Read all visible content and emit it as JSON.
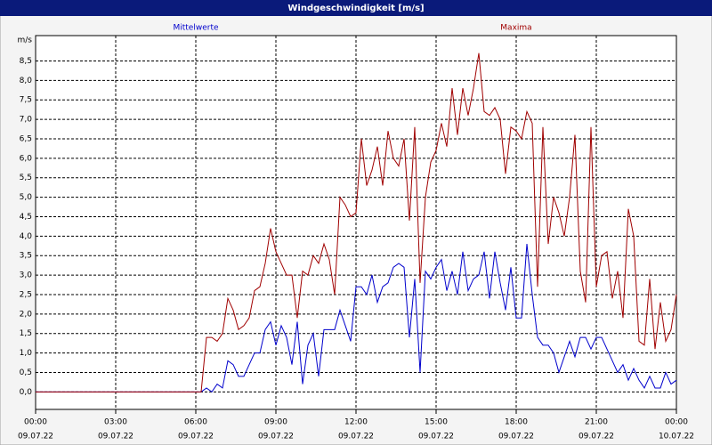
{
  "chart_data": {
    "type": "line",
    "title": "Windgeschwindigkeit [m/s]",
    "y_label": "m/s",
    "x": [
      0,
      6.2,
      6.4,
      6.6,
      6.8,
      7.0,
      7.2,
      7.4,
      7.6,
      7.8,
      8.0,
      8.2,
      8.4,
      8.6,
      8.8,
      9.0,
      9.2,
      9.4,
      9.6,
      9.8,
      10.0,
      10.2,
      10.4,
      10.6,
      10.8,
      11.0,
      11.2,
      11.4,
      11.6,
      11.8,
      12.0,
      12.2,
      12.4,
      12.6,
      12.8,
      13.0,
      13.2,
      13.4,
      13.6,
      13.8,
      14.0,
      14.2,
      14.4,
      14.6,
      14.8,
      15.0,
      15.2,
      15.4,
      15.6,
      15.8,
      16.0,
      16.2,
      16.4,
      16.6,
      16.8,
      17.0,
      17.2,
      17.4,
      17.6,
      17.8,
      18.0,
      18.2,
      18.4,
      18.6,
      18.8,
      19.0,
      19.2,
      19.4,
      19.6,
      19.8,
      20.0,
      20.2,
      20.4,
      20.6,
      20.8,
      21.0,
      21.2,
      21.4,
      21.6,
      21.8,
      22.0,
      22.2,
      22.4,
      22.6,
      22.8,
      23.0,
      23.2,
      23.4,
      23.6,
      23.8,
      24.0
    ],
    "series": [
      {
        "name": "Mittelwerte",
        "color": "#0000cc",
        "values": [
          0,
          0,
          0.1,
          0,
          0.2,
          0.1,
          0.8,
          0.7,
          0.4,
          0.4,
          0.7,
          1.0,
          1.0,
          1.6,
          1.8,
          1.2,
          1.7,
          1.4,
          0.7,
          1.8,
          0.2,
          1.2,
          1.5,
          0.4,
          1.6,
          1.6,
          1.6,
          2.1,
          1.7,
          1.3,
          2.7,
          2.7,
          2.5,
          3.0,
          2.3,
          2.7,
          2.8,
          3.2,
          3.3,
          3.2,
          1.4,
          2.9,
          0.5,
          3.1,
          2.9,
          3.2,
          3.4,
          2.6,
          3.1,
          2.5,
          3.6,
          2.6,
          2.9,
          3.0,
          3.6,
          2.4,
          3.6,
          2.8,
          2.1,
          3.2,
          1.9,
          1.9,
          3.8,
          2.5,
          1.4,
          1.2,
          1.2,
          1.0,
          0.5,
          0.9,
          1.3,
          0.9,
          1.4,
          1.4,
          1.1,
          1.4,
          1.4,
          1.1,
          0.8,
          0.5,
          0.7,
          0.3,
          0.6,
          0.3,
          0.1,
          0.4,
          0.1,
          0.1,
          0.5,
          0.2,
          0.3
        ]
      },
      {
        "name": "Maxima",
        "color": "#a00000",
        "values": [
          0,
          0,
          1.4,
          1.4,
          1.3,
          1.5,
          2.4,
          2.1,
          1.6,
          1.7,
          1.9,
          2.6,
          2.7,
          3.3,
          4.2,
          3.6,
          3.3,
          3.0,
          3.0,
          1.9,
          3.1,
          3.0,
          3.5,
          3.3,
          3.8,
          3.4,
          2.5,
          5.0,
          4.8,
          4.5,
          4.6,
          6.5,
          5.3,
          5.7,
          6.3,
          5.3,
          6.7,
          6.0,
          5.8,
          6.5,
          4.4,
          6.8,
          2.8,
          5.0,
          5.9,
          6.2,
          6.9,
          6.3,
          7.8,
          6.6,
          7.8,
          7.1,
          7.8,
          8.7,
          7.2,
          7.1,
          7.3,
          7.0,
          5.6,
          6.8,
          6.7,
          6.5,
          7.2,
          6.9,
          2.7,
          6.8,
          3.8,
          5.0,
          4.6,
          4.0,
          5.0,
          6.6,
          3.1,
          2.3,
          6.8,
          2.7,
          3.5,
          3.6,
          2.4,
          3.1,
          1.9,
          4.7,
          4.0,
          1.3,
          1.2,
          2.9,
          1.1,
          2.3,
          1.3,
          1.6,
          2.5
        ]
      }
    ],
    "xlim": [
      0,
      24
    ],
    "xticks": [
      {
        "value": 0,
        "label": "00:00"
      },
      {
        "value": 3,
        "label": "03:00"
      },
      {
        "value": 6,
        "label": "06:00"
      },
      {
        "value": 9,
        "label": "09:00"
      },
      {
        "value": 12,
        "label": "12:00"
      },
      {
        "value": 15,
        "label": "15:00"
      },
      {
        "value": 18,
        "label": "18:00"
      },
      {
        "value": 21,
        "label": "21:00"
      },
      {
        "value": 24,
        "label": "00:00"
      }
    ],
    "xtick_dates": [
      "09.07.22",
      "09.07.22",
      "09.07.22",
      "09.07.22",
      "09.07.22",
      "09.07.22",
      "09.07.22",
      "09.07.22",
      "10.07.22"
    ],
    "ylim": [
      -0.45,
      9.15
    ],
    "yticks": [
      {
        "value": 0,
        "label": "0,0"
      },
      {
        "value": 0.5,
        "label": "0,5"
      },
      {
        "value": 1,
        "label": "1,0"
      },
      {
        "value": 1.5,
        "label": "1,5"
      },
      {
        "value": 2,
        "label": "2,0"
      },
      {
        "value": 2.5,
        "label": "2,5"
      },
      {
        "value": 3,
        "label": "3,0"
      },
      {
        "value": 3.5,
        "label": "3,5"
      },
      {
        "value": 4,
        "label": "4,0"
      },
      {
        "value": 4.5,
        "label": "4,5"
      },
      {
        "value": 5,
        "label": "5,0"
      },
      {
        "value": 5.5,
        "label": "5,5"
      },
      {
        "value": 6,
        "label": "6,0"
      },
      {
        "value": 6.5,
        "label": "6,5"
      },
      {
        "value": 7,
        "label": "7,0"
      },
      {
        "value": 7.5,
        "label": "7,5"
      },
      {
        "value": 8,
        "label": "8,0"
      },
      {
        "value": 8.5,
        "label": "8,5"
      }
    ],
    "grid": true
  }
}
